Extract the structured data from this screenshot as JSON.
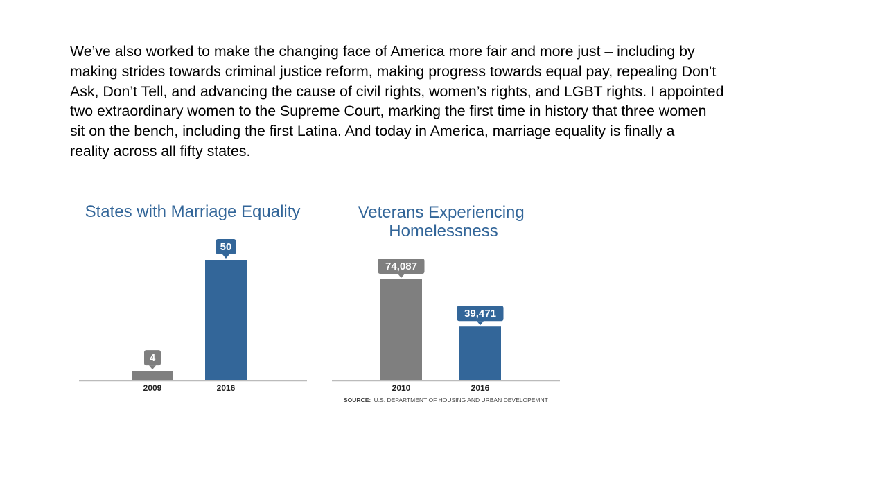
{
  "paragraph": "We’ve also worked to make the changing face of America more fair and more just – including by\nmaking strides towards criminal justice reform, making progress towards equal pay, repealing Don’t\nAsk, Don’t Tell, and advancing the cause of civil rights, women’s rights, and LGBT rights. I appointed\ntwo extraordinary women to the Supreme Court, marking the first time in history that three women\nsit on the bench, including the first Latina. And today in America, marriage equality is finally a\nreality across all fifty states.",
  "colors": {
    "title": "#336699",
    "gray_bar": "#7f7f7f",
    "blue_bar": "#336699",
    "axis": "#bbbbbb",
    "tick": "#222222"
  },
  "chart_data": [
    {
      "type": "bar",
      "title": "States with Marriage Equality",
      "categories": [
        "2009",
        "2016"
      ],
      "values": [
        4,
        50
      ],
      "data_labels": [
        "4",
        "50"
      ],
      "bar_colors": [
        "gray",
        "blue"
      ],
      "ylim": [
        0,
        50
      ]
    },
    {
      "type": "bar",
      "title": "Veterans Experiencing Homelessness",
      "categories": [
        "2010",
        "2016"
      ],
      "values": [
        74087,
        39471
      ],
      "data_labels": [
        "74,087",
        "39,471"
      ],
      "bar_colors": [
        "gray",
        "blue"
      ],
      "ylim": [
        0,
        74087
      ],
      "source_label": "SOURCE:",
      "source_text": "U.S. DEPARTMENT OF HOUSING AND URBAN DEVELOPEMNT"
    }
  ]
}
